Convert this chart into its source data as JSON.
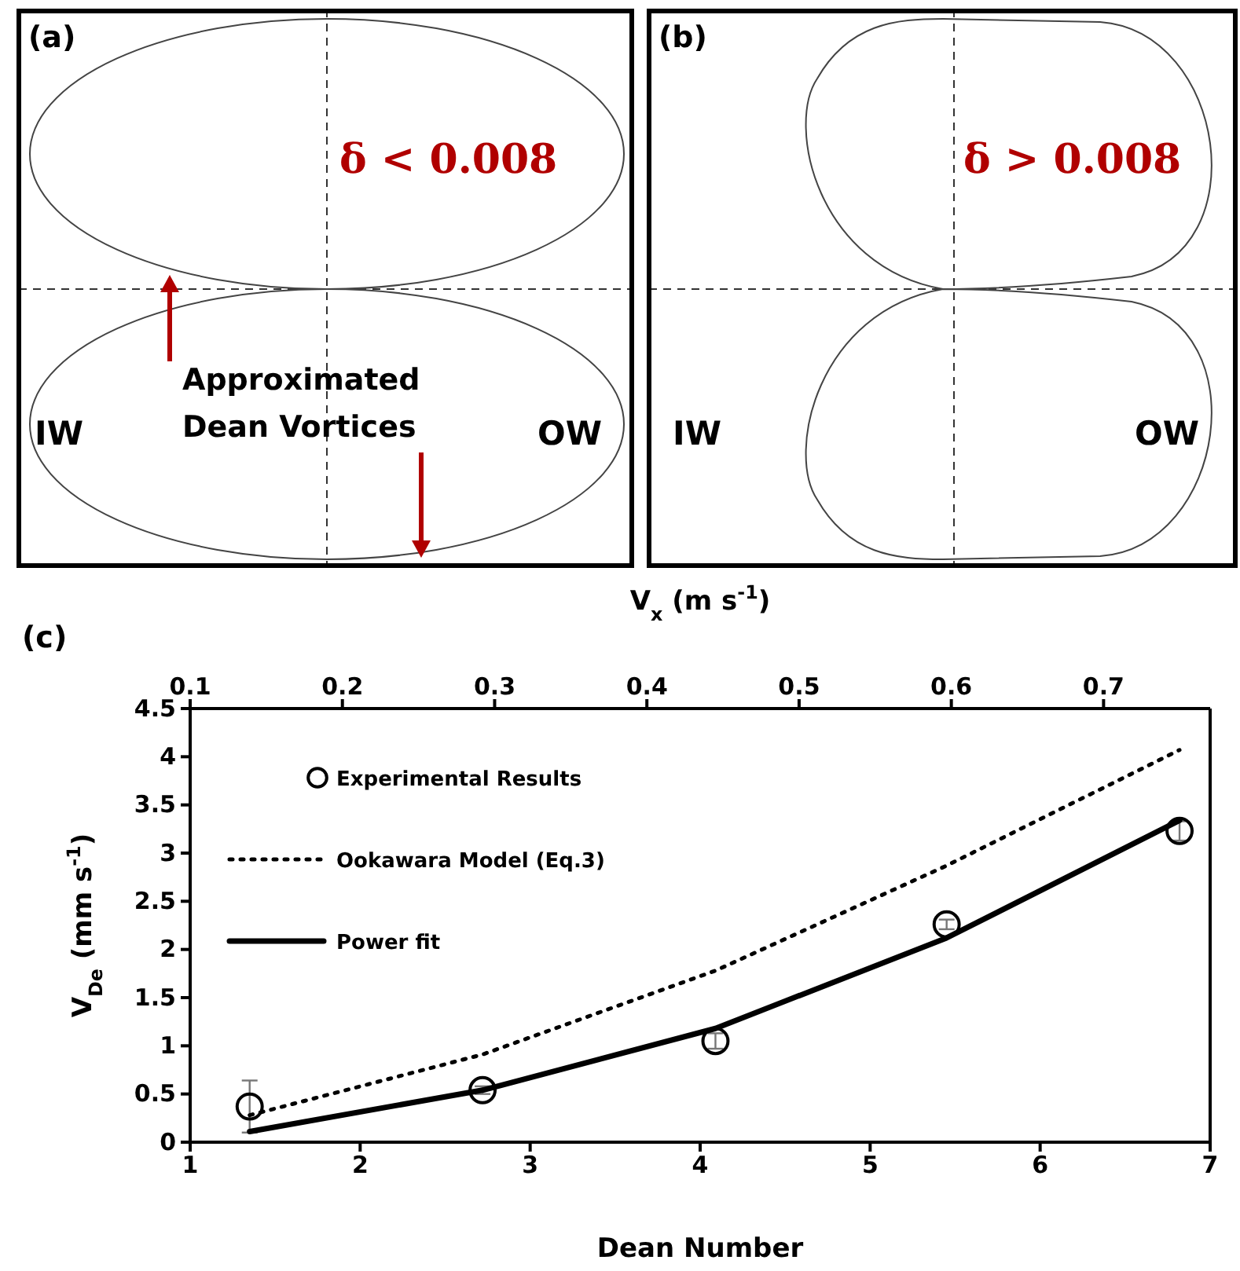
{
  "chart_data": [
    {
      "type": "other",
      "title": "(a)",
      "annotations": [
        "δ < 0.008",
        "Approximated Dean Vortices",
        "IW",
        "OW"
      ]
    },
    {
      "type": "other",
      "title": "(b)",
      "annotations": [
        "δ > 0.008",
        "IW",
        "OW"
      ]
    },
    {
      "type": "scatter",
      "title": "(c)",
      "xlabel": "Dean Number",
      "ylabel": "V$_{De}$ (mm s$^{-1}$)",
      "x2label": "V$_{x}$ (m s$^{-1}$)",
      "xlim": [
        1,
        7
      ],
      "xticks": [
        1,
        2,
        3,
        4,
        5,
        6,
        7
      ],
      "ylim": [
        0,
        4.5
      ],
      "yticks": [
        0,
        0.5,
        1,
        1.5,
        2,
        2.5,
        3,
        3.5,
        4,
        4.5
      ],
      "x2lim": [
        0.1,
        0.77
      ],
      "x2ticks": [
        0.1,
        0.2,
        0.3,
        0.4,
        0.5,
        0.6,
        0.7
      ],
      "legend": "top left",
      "grid": false,
      "series": [
        {
          "name": "Experimental Results",
          "type": "scatter",
          "marker": "circle",
          "color": "#000000",
          "x": [
            1.35,
            2.72,
            4.09,
            5.45,
            6.82
          ],
          "values": [
            0.37,
            0.54,
            1.05,
            2.26,
            3.23
          ],
          "errors": [
            0.27,
            0.04,
            0.08,
            0.05,
            0.1
          ]
        },
        {
          "name": "Ookawara Model (Eq.3)",
          "type": "line",
          "line_style": "dotted",
          "marker": "none",
          "color": "#000000",
          "x": [
            1.35,
            2.72,
            4.09,
            5.45,
            6.82
          ],
          "values": [
            0.28,
            0.91,
            1.78,
            2.87,
            4.07
          ]
        },
        {
          "name": "Power fit",
          "type": "line",
          "line_style": "solid",
          "marker": "none",
          "color": "#000000",
          "x": [
            1.35,
            2.72,
            4.09,
            5.45,
            6.82
          ],
          "values": [
            0.11,
            0.54,
            1.18,
            2.12,
            3.34
          ]
        }
      ]
    }
  ]
}
